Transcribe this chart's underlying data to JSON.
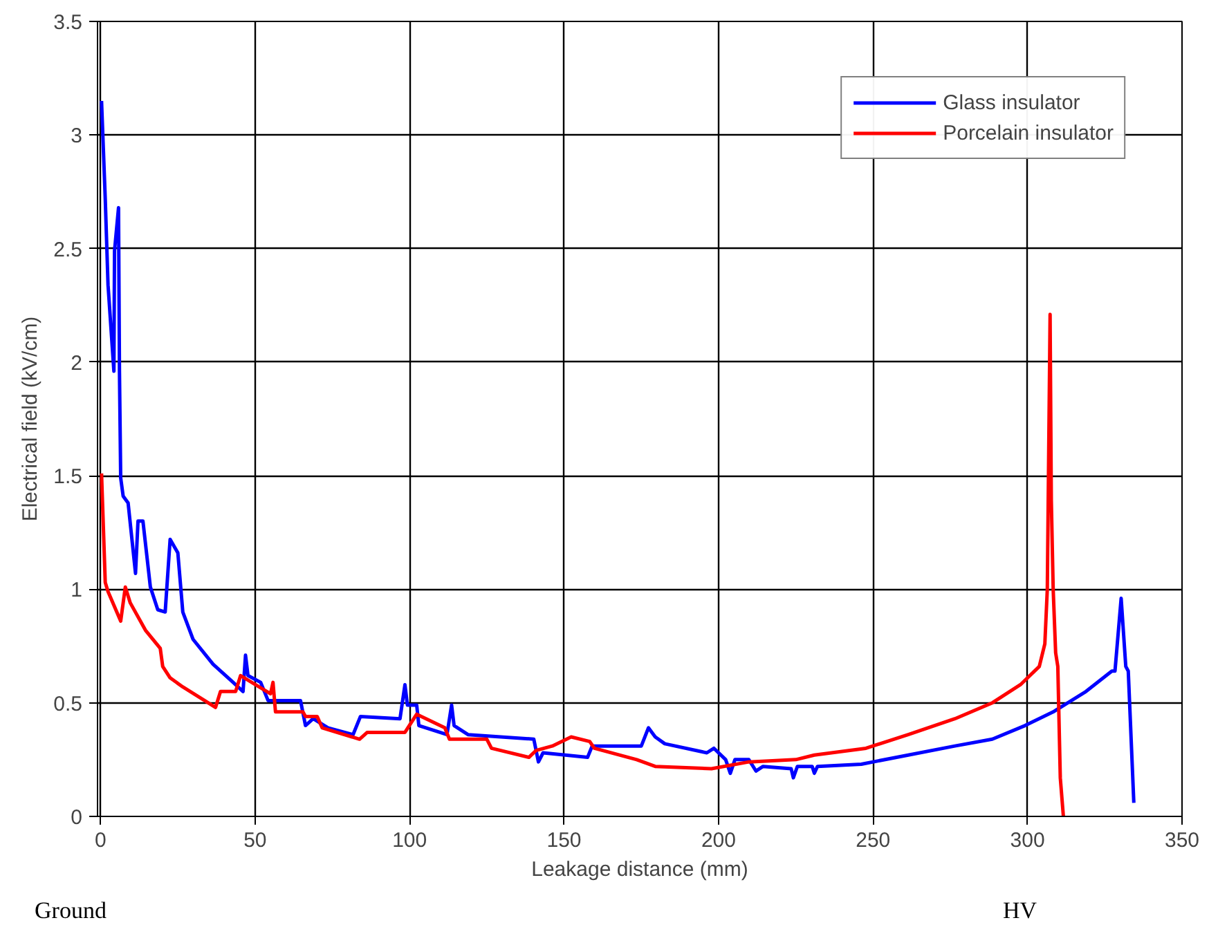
{
  "chart_data": {
    "type": "line",
    "xlabel": "Leakage distance (mm)",
    "ylabel": "Electrical field (kV/cm)",
    "xlim": [
      -1,
      350
    ],
    "ylim": [
      0,
      3.5
    ],
    "xticks": [
      0,
      50,
      100,
      150,
      200,
      250,
      300,
      350
    ],
    "yticks": [
      0,
      0.5,
      1,
      1.5,
      2,
      2.5,
      3,
      3.5
    ],
    "grid": true,
    "legend": "top right",
    "series": [
      {
        "name": "Glass insulator",
        "color": "#0000ff",
        "x": [
          0.3,
          1.5,
          2.4,
          4.3,
          4.5,
          5.8,
          6.1,
          6.5,
          7.3,
          8.9,
          11.3,
          12.1,
          13.7,
          16.1,
          18.5,
          20.9,
          22.5,
          25,
          26.6,
          29.9,
          36.4,
          42.9,
          46.1,
          46.9,
          47.7,
          51.8,
          54.2,
          64.7,
          66.3,
          68.8,
          73.6,
          81.7,
          84.1,
          96.9,
          98.5,
          99.3,
          102.3,
          103,
          112.1,
          113.6,
          114.4,
          118.9,
          140.2,
          141.7,
          143.2,
          157.6,
          159.1,
          175,
          177.3,
          179.5,
          182.6,
          196.2,
          198.5,
          202.3,
          203.8,
          205.3,
          209.8,
          212.1,
          214.4,
          223.5,
          224.2,
          225.5,
          230.3,
          231,
          232,
          246.2,
          261.4,
          276.5,
          288.6,
          299.2,
          308.3,
          318.9,
          327.3,
          328.3,
          330.3,
          331.8,
          332.6,
          334.4
        ],
        "values": [
          3.15,
          2.72,
          2.34,
          1.96,
          2.49,
          2.68,
          1.96,
          1.49,
          1.41,
          1.38,
          1.07,
          1.3,
          1.3,
          1.01,
          0.91,
          0.9,
          1.22,
          1.16,
          0.9,
          0.78,
          0.67,
          0.59,
          0.55,
          0.71,
          0.62,
          0.59,
          0.51,
          0.51,
          0.4,
          0.43,
          0.39,
          0.36,
          0.44,
          0.43,
          0.58,
          0.49,
          0.49,
          0.4,
          0.36,
          0.49,
          0.4,
          0.36,
          0.34,
          0.24,
          0.28,
          0.26,
          0.31,
          0.31,
          0.39,
          0.35,
          0.32,
          0.28,
          0.3,
          0.25,
          0.19,
          0.25,
          0.25,
          0.2,
          0.22,
          0.21,
          0.17,
          0.22,
          0.22,
          0.19,
          0.22,
          0.23,
          0.27,
          0.31,
          0.34,
          0.4,
          0.46,
          0.55,
          0.64,
          0.64,
          0.96,
          0.66,
          0.64,
          0.06
        ]
      },
      {
        "name": "Porcelain insulator",
        "color": "#ff0000",
        "x": [
          0.3,
          1.5,
          2.4,
          6.5,
          8,
          9.6,
          14.5,
          19.3,
          20.1,
          22.5,
          26.6,
          37.2,
          38.8,
          43.7,
          45.3,
          55,
          55.8,
          56.6,
          65.5,
          66.3,
          70.1,
          71.7,
          83.8,
          86.3,
          90,
          98.5,
          102.3,
          111.4,
          112.9,
          125,
          126.5,
          138.6,
          140.9,
          146.2,
          152.3,
          158.3,
          159.8,
          173.5,
          179.5,
          197.7,
          209.8,
          225,
          231,
          247.7,
          261.4,
          276.5,
          288.6,
          297.7,
          303.8,
          305.6,
          306.4,
          307.3,
          307.7,
          308.3,
          309.1,
          309.8,
          310.6,
          311.6
        ],
        "values": [
          1.51,
          1.03,
          0.99,
          0.86,
          1.01,
          0.94,
          0.82,
          0.74,
          0.66,
          0.61,
          0.57,
          0.48,
          0.55,
          0.55,
          0.62,
          0.54,
          0.59,
          0.46,
          0.46,
          0.44,
          0.44,
          0.39,
          0.34,
          0.37,
          0.37,
          0.37,
          0.45,
          0.39,
          0.34,
          0.34,
          0.3,
          0.26,
          0.29,
          0.31,
          0.35,
          0.33,
          0.3,
          0.25,
          0.22,
          0.21,
          0.24,
          0.25,
          0.27,
          0.3,
          0.36,
          0.43,
          0.5,
          0.58,
          0.66,
          0.76,
          1.0,
          2.21,
          1.39,
          1.0,
          0.72,
          0.66,
          0.17,
          0.0
        ]
      }
    ],
    "annotations": [
      "Ground",
      "HV"
    ]
  }
}
